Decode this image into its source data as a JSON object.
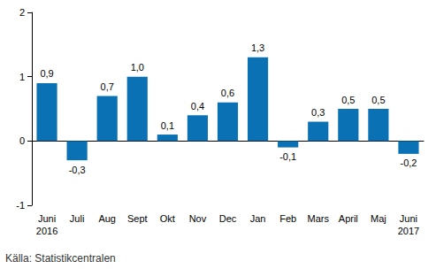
{
  "chart_data": {
    "type": "bar",
    "categories": [
      "Juni\n2016",
      "Juli",
      "Aug",
      "Sept",
      "Okt",
      "Nov",
      "Dec",
      "Jan",
      "Feb",
      "Mars",
      "April",
      "Maj",
      "Juni\n2017"
    ],
    "values": [
      0.9,
      -0.3,
      0.7,
      1.0,
      0.1,
      0.4,
      0.6,
      1.3,
      -0.1,
      0.3,
      0.5,
      0.5,
      -0.2
    ],
    "value_labels": [
      "0,9",
      "-0,3",
      "0,7",
      "1,0",
      "0,1",
      "0,4",
      "0,6",
      "1,3",
      "-0,1",
      "0,3",
      "0,5",
      "0,5",
      "-0,2"
    ],
    "data_labels": true,
    "color": "#0a72b4",
    "ylim": [
      -1,
      2
    ],
    "yticks": [
      -1,
      0,
      1,
      2
    ],
    "grid": false,
    "source": "Källa: Statistikcentralen"
  }
}
